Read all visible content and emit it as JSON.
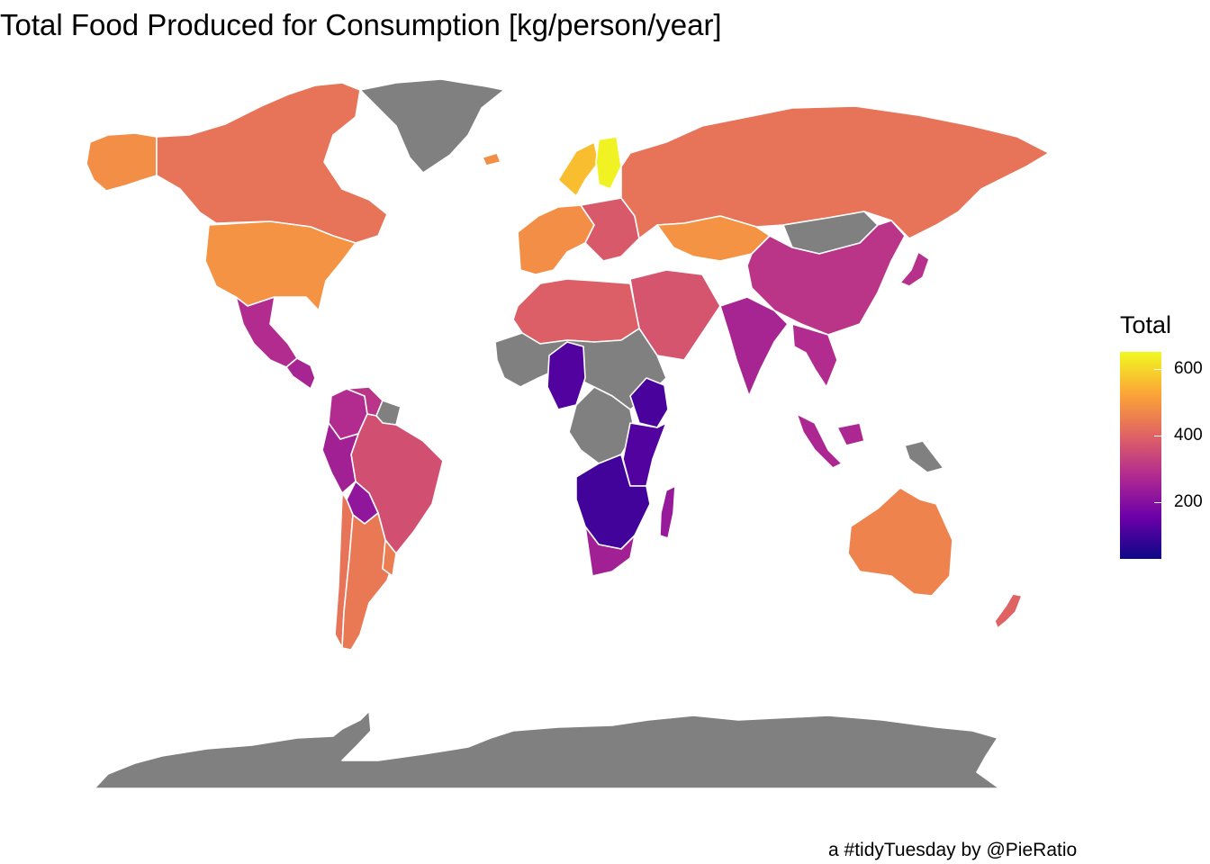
{
  "title": "Total Food Produced for Consumption [kg/person/year]",
  "caption": "a #tidyTuesday by @PieRatio",
  "legend": {
    "title": "Total",
    "ticks": [
      {
        "value": 600,
        "label": "600"
      },
      {
        "value": 400,
        "label": "400"
      },
      {
        "value": 200,
        "label": "200"
      }
    ],
    "range": [
      30,
      650
    ],
    "palette": [
      "#0d0887",
      "#6a00a8",
      "#b12a90",
      "#e16462",
      "#fca636",
      "#f0f921"
    ]
  },
  "colors": {
    "no_data": "#808080",
    "border": "#ffffff",
    "background": "#ffffff"
  },
  "regions": [
    {
      "name": "alaska",
      "value": 480
    },
    {
      "name": "canada",
      "value": 430
    },
    {
      "name": "usa",
      "value": 490
    },
    {
      "name": "mexico",
      "value": 280
    },
    {
      "name": "central-america",
      "value": 260
    },
    {
      "name": "colombia",
      "value": 280
    },
    {
      "name": "venezuela",
      "value": 300
    },
    {
      "name": "guianas",
      "value": null
    },
    {
      "name": "peru",
      "value": 250
    },
    {
      "name": "brazil",
      "value": 360
    },
    {
      "name": "bolivia",
      "value": 220
    },
    {
      "name": "chile",
      "value": 430
    },
    {
      "name": "argentina",
      "value": 440
    },
    {
      "name": "uruguay",
      "value": 450
    },
    {
      "name": "greenland",
      "value": null
    },
    {
      "name": "iceland",
      "value": 480
    },
    {
      "name": "scandinavia",
      "value": 560
    },
    {
      "name": "finland",
      "value": 640
    },
    {
      "name": "western-europe",
      "value": 480
    },
    {
      "name": "eastern-europe",
      "value": 380
    },
    {
      "name": "russia",
      "value": 430
    },
    {
      "name": "kazakhstan",
      "value": 490
    },
    {
      "name": "mongolia",
      "value": null
    },
    {
      "name": "china",
      "value": 300
    },
    {
      "name": "japan",
      "value": 290
    },
    {
      "name": "middle-east",
      "value": 370
    },
    {
      "name": "india",
      "value": 260
    },
    {
      "name": "southeast-asia",
      "value": 280
    },
    {
      "name": "indonesia",
      "value": 270
    },
    {
      "name": "png",
      "value": null
    },
    {
      "name": "australia",
      "value": 460
    },
    {
      "name": "new-zealand",
      "value": 400
    },
    {
      "name": "north-africa",
      "value": 390
    },
    {
      "name": "sahel",
      "value": null
    },
    {
      "name": "nigeria",
      "value": 120
    },
    {
      "name": "central-africa",
      "value": null
    },
    {
      "name": "ethiopia",
      "value": 110
    },
    {
      "name": "east-africa",
      "value": 120
    },
    {
      "name": "southern-africa",
      "value": 100
    },
    {
      "name": "south-africa",
      "value": 250
    },
    {
      "name": "madagascar",
      "value": 230
    },
    {
      "name": "antarctica",
      "value": null
    }
  ]
}
